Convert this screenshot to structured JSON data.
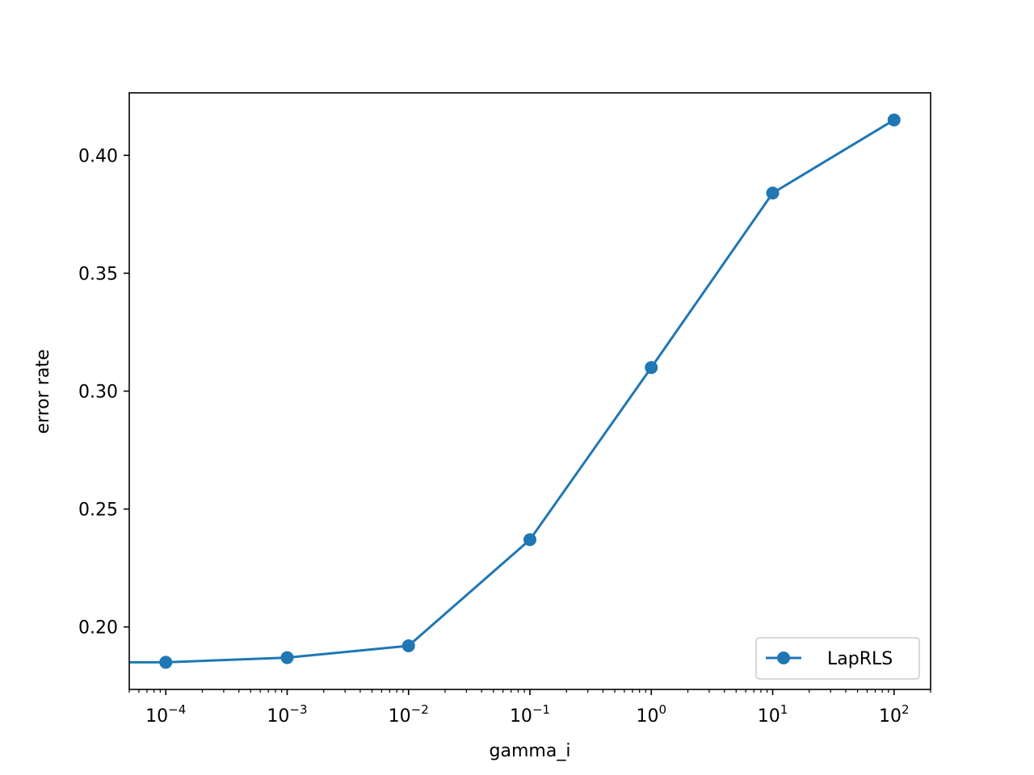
{
  "chart_data": {
    "type": "line",
    "xlabel": "gamma_i",
    "ylabel": "error rate",
    "x_scale": "log",
    "xlim": [
      5e-05,
      200
    ],
    "ylim": [
      0.1735,
      0.4265
    ],
    "x_ticks": [
      {
        "value": 0.0001,
        "base": "10",
        "exponent": "−4"
      },
      {
        "value": 0.001,
        "base": "10",
        "exponent": "−3"
      },
      {
        "value": 0.01,
        "base": "10",
        "exponent": "−2"
      },
      {
        "value": 0.1,
        "base": "10",
        "exponent": "−1"
      },
      {
        "value": 1,
        "base": "10",
        "exponent": "0"
      },
      {
        "value": 10,
        "base": "10",
        "exponent": "1"
      },
      {
        "value": 100,
        "base": "10",
        "exponent": "2"
      }
    ],
    "y_ticks": [
      {
        "value": 0.2,
        "label": "0.20"
      },
      {
        "value": 0.25,
        "label": "0.25"
      },
      {
        "value": 0.3,
        "label": "0.30"
      },
      {
        "value": 0.35,
        "label": "0.35"
      },
      {
        "value": 0.4,
        "label": "0.40"
      }
    ],
    "grid": false,
    "legend_position": "lower right",
    "series": [
      {
        "name": "LapRLS",
        "color": "#1f77b4",
        "marker": "circle",
        "x": [
          1e-05,
          0.0001,
          0.001,
          0.01,
          0.1,
          1,
          10,
          100
        ],
        "y": [
          0.185,
          0.185,
          0.187,
          0.192,
          0.237,
          0.31,
          0.384,
          0.415
        ]
      }
    ]
  }
}
